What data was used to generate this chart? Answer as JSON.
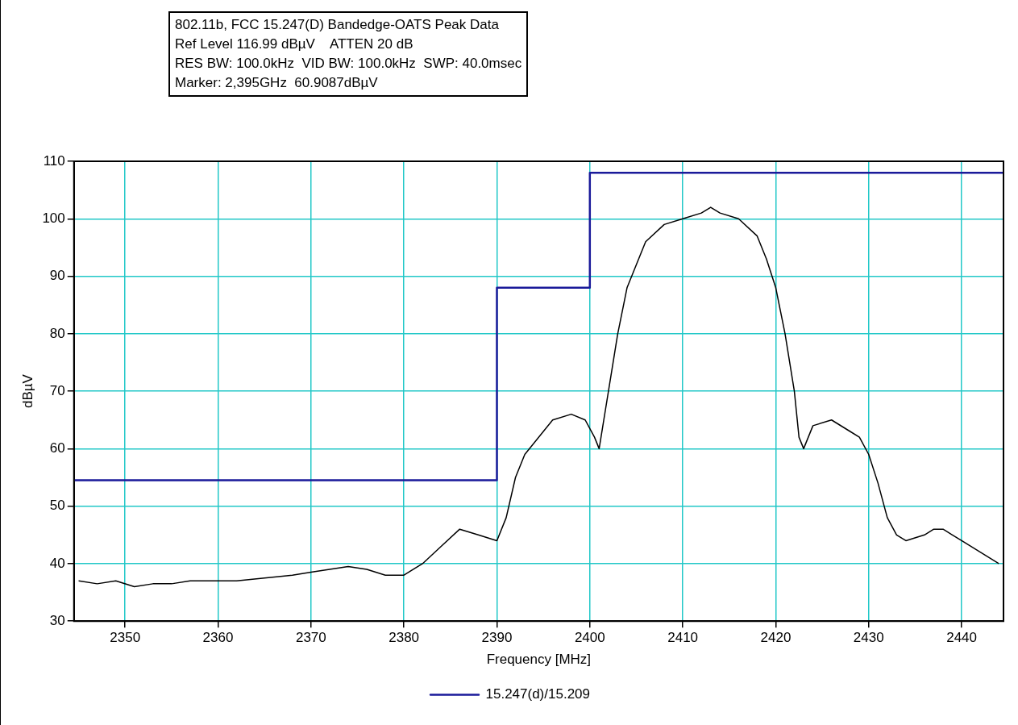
{
  "chart_data": {
    "type": "line",
    "title": "802.11b, FCC 15.247(D) Bandedge-OATS Peak Data",
    "annotations": [
      "Ref Level 116.99 dBµV    ATTEN 20 dB",
      "RES BW: 100.0kHz  VID BW: 100.0kHz  SWP: 40.0msec",
      "Marker: 2,395GHz  60.9087dBµV"
    ],
    "xlabel": "Frequency [MHz]",
    "ylabel": "dBµV",
    "xlim": [
      2344.5,
      2444.5
    ],
    "xticks": [
      2350,
      2360,
      2370,
      2380,
      2390,
      2400,
      2410,
      2420,
      2430,
      2440
    ],
    "ylim": [
      30,
      110
    ],
    "yticks": [
      30,
      40,
      50,
      60,
      70,
      80,
      90,
      100,
      110
    ],
    "grid": true,
    "legend": "bottom",
    "marker": "none",
    "series": [
      {
        "type": "step",
        "name": "15.247(d)/15.209",
        "color": "#1a1a9a",
        "x": [
          2344.5,
          2390,
          2400,
          2444.5
        ],
        "values": [
          54.5,
          88,
          108,
          108
        ]
      },
      {
        "color": "#000000",
        "x": [
          2345,
          2347,
          2349,
          2351,
          2353,
          2355,
          2357,
          2360,
          2362,
          2365,
          2368,
          2370,
          2372,
          2374,
          2376,
          2378,
          2380,
          2382,
          2384,
          2386,
          2388,
          2390,
          2391,
          2392,
          2393,
          2394,
          2396,
          2398,
          2399.5,
          2400.5,
          2401,
          2402,
          2403,
          2404,
          2405,
          2406,
          2408,
          2410,
          2412,
          2413,
          2414,
          2416,
          2418,
          2419,
          2420,
          2421,
          2422,
          2422.5,
          2423,
          2424,
          2426,
          2428,
          2429,
          2430,
          2431,
          2432,
          2433,
          2434,
          2436,
          2437,
          2438,
          2439,
          2440,
          2442,
          2444
        ],
        "values": [
          37,
          36.5,
          37,
          36,
          36.5,
          36.5,
          37,
          37,
          37,
          37.5,
          38,
          38.5,
          39,
          39.5,
          39,
          38,
          38,
          40,
          43,
          46,
          45,
          44,
          48,
          55,
          59,
          61,
          65,
          66,
          65,
          62,
          60,
          70,
          80,
          88,
          92,
          96,
          99,
          100,
          101,
          102,
          101,
          100,
          97,
          93,
          88,
          80,
          70,
          62,
          60,
          64,
          65,
          63,
          62,
          59,
          54,
          48,
          45,
          44,
          45,
          46,
          46,
          45,
          44,
          42,
          40
        ]
      }
    ]
  }
}
